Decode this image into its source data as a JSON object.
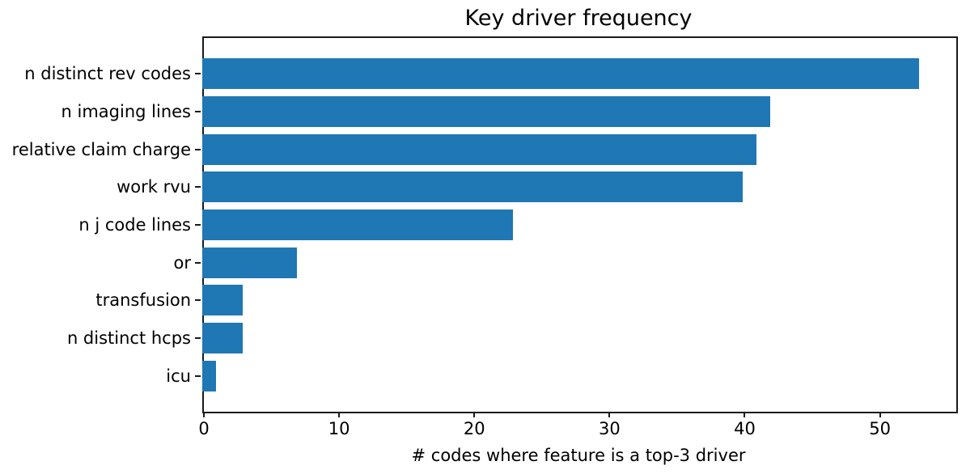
{
  "chart_data": {
    "type": "bar",
    "orientation": "horizontal",
    "title": "Key driver frequency",
    "xlabel": "# codes where feature is a top-3 driver",
    "ylabel": "",
    "categories": [
      "n distinct rev codes",
      "n imaging lines",
      "relative claim charge",
      "work rvu",
      "n j code lines",
      "or",
      "transfusion",
      "n distinct hcps",
      "icu"
    ],
    "values": [
      53,
      42,
      41,
      40,
      23,
      7,
      3,
      3,
      1
    ],
    "xlim": [
      0,
      55.65
    ],
    "xticks": [
      0,
      10,
      20,
      30,
      40,
      50
    ],
    "bar_color": "#1f77b4",
    "axis_color": "#1a1a1a",
    "grid": false,
    "legend_position": "none"
  }
}
